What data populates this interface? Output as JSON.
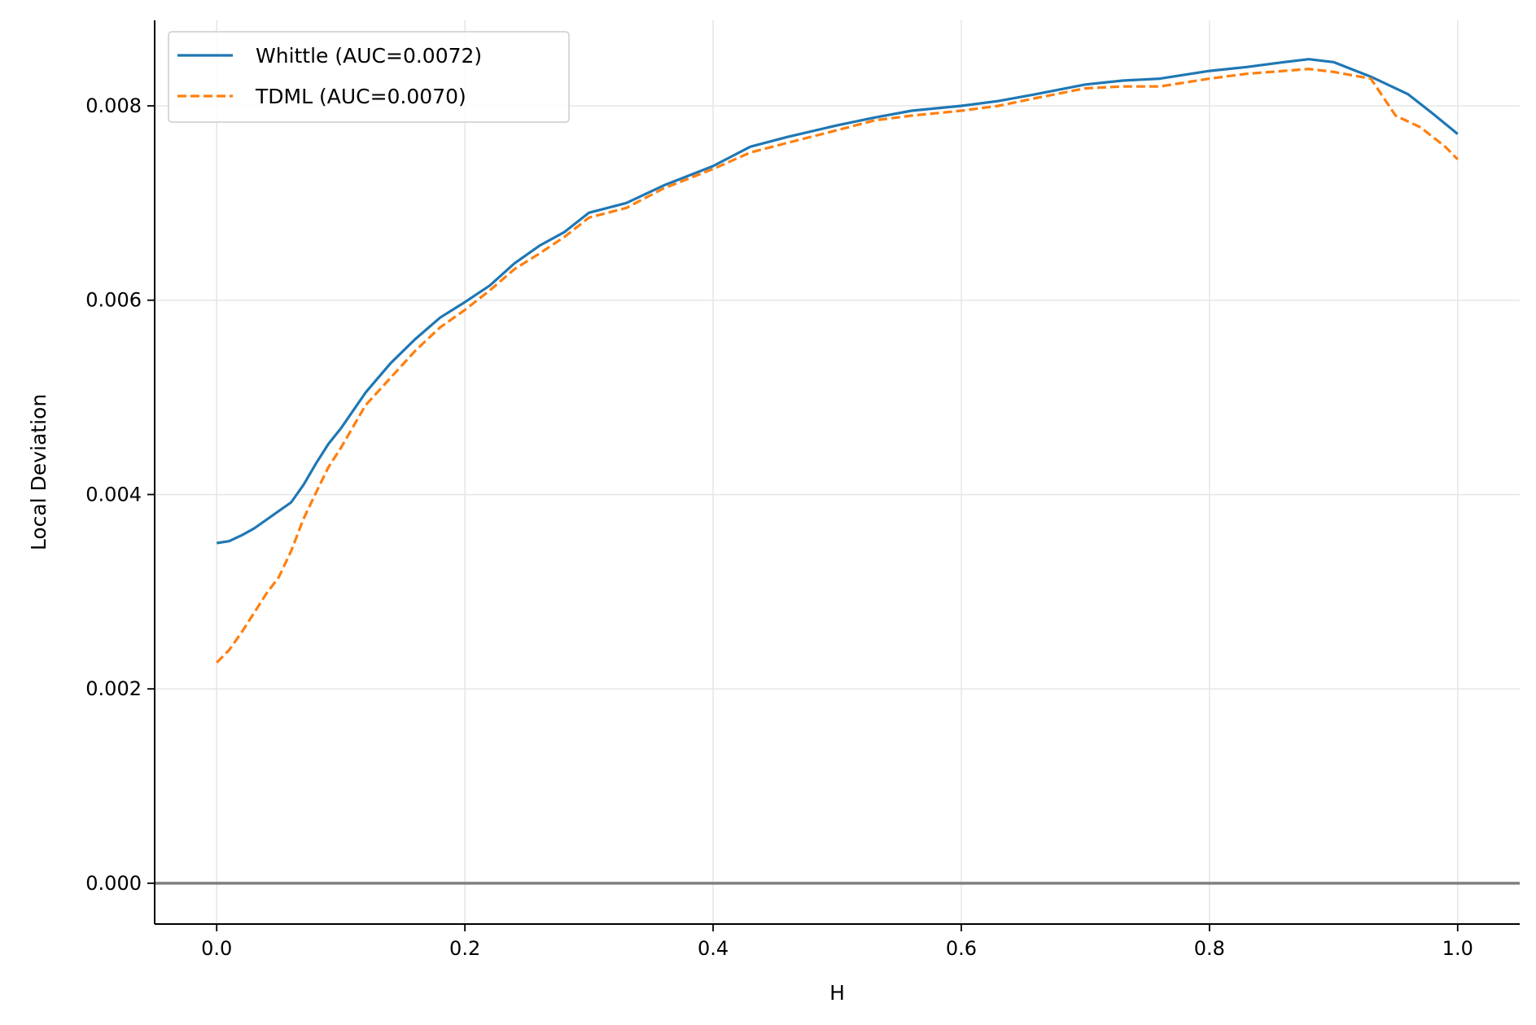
{
  "chart_data": {
    "type": "line",
    "title": "",
    "xlabel": "H",
    "ylabel": "Local Deviation",
    "xlim": [
      -0.05,
      1.05
    ],
    "ylim": [
      -0.00042,
      0.00888
    ],
    "xticks": [
      0.0,
      0.2,
      0.4,
      0.6,
      0.8,
      1.0
    ],
    "xtick_labels": [
      "0.0",
      "0.2",
      "0.4",
      "0.6",
      "0.8",
      "1.0"
    ],
    "yticks": [
      0.0,
      0.002,
      0.004,
      0.006,
      0.008
    ],
    "ytick_labels": [
      "0.000",
      "0.002",
      "0.004",
      "0.006",
      "0.008"
    ],
    "grid": true,
    "legend_position": "top-left",
    "reference_line": {
      "y": 0.0,
      "color": "#808080"
    },
    "series": [
      {
        "name": "Whittle (AUC=0.0072)",
        "color": "#1f77b4",
        "style": "solid",
        "x": [
          0.0,
          0.01,
          0.02,
          0.03,
          0.04,
          0.05,
          0.06,
          0.07,
          0.08,
          0.09,
          0.1,
          0.12,
          0.14,
          0.16,
          0.18,
          0.2,
          0.22,
          0.24,
          0.26,
          0.28,
          0.3,
          0.33,
          0.36,
          0.4,
          0.43,
          0.46,
          0.5,
          0.53,
          0.56,
          0.6,
          0.63,
          0.66,
          0.7,
          0.73,
          0.76,
          0.8,
          0.83,
          0.86,
          0.88,
          0.9,
          0.93,
          0.96,
          0.98,
          1.0
        ],
        "values": [
          0.0035,
          0.00352,
          0.00358,
          0.00365,
          0.00374,
          0.00383,
          0.00392,
          0.0041,
          0.00432,
          0.00452,
          0.00468,
          0.00505,
          0.00535,
          0.0056,
          0.00582,
          0.00598,
          0.00615,
          0.00638,
          0.00656,
          0.0067,
          0.0069,
          0.007,
          0.00718,
          0.00738,
          0.00758,
          0.00768,
          0.0078,
          0.00788,
          0.00795,
          0.008,
          0.00805,
          0.00812,
          0.00822,
          0.00826,
          0.00828,
          0.00836,
          0.0084,
          0.00845,
          0.00848,
          0.00845,
          0.0083,
          0.00812,
          0.00792,
          0.00771
        ]
      },
      {
        "name": "TDML (AUC=0.0070)",
        "color": "#ff7f0e",
        "style": "dashed",
        "x": [
          0.0,
          0.01,
          0.02,
          0.03,
          0.04,
          0.05,
          0.06,
          0.07,
          0.08,
          0.09,
          0.1,
          0.12,
          0.14,
          0.16,
          0.18,
          0.2,
          0.22,
          0.24,
          0.26,
          0.28,
          0.3,
          0.33,
          0.36,
          0.4,
          0.43,
          0.46,
          0.5,
          0.53,
          0.56,
          0.6,
          0.63,
          0.66,
          0.7,
          0.73,
          0.76,
          0.8,
          0.83,
          0.86,
          0.88,
          0.9,
          0.93,
          0.95,
          0.97,
          0.99,
          1.0
        ],
        "values": [
          0.00227,
          0.0024,
          0.00258,
          0.00278,
          0.00298,
          0.00315,
          0.00342,
          0.00375,
          0.00402,
          0.00428,
          0.00448,
          0.00492,
          0.0052,
          0.00548,
          0.00572,
          0.0059,
          0.0061,
          0.00632,
          0.00648,
          0.00665,
          0.00685,
          0.00695,
          0.00715,
          0.00735,
          0.00752,
          0.00762,
          0.00775,
          0.00785,
          0.0079,
          0.00795,
          0.008,
          0.00808,
          0.00818,
          0.0082,
          0.0082,
          0.00828,
          0.00833,
          0.00836,
          0.00838,
          0.00835,
          0.00828,
          0.0079,
          0.00778,
          0.00758,
          0.00745
        ]
      }
    ]
  }
}
